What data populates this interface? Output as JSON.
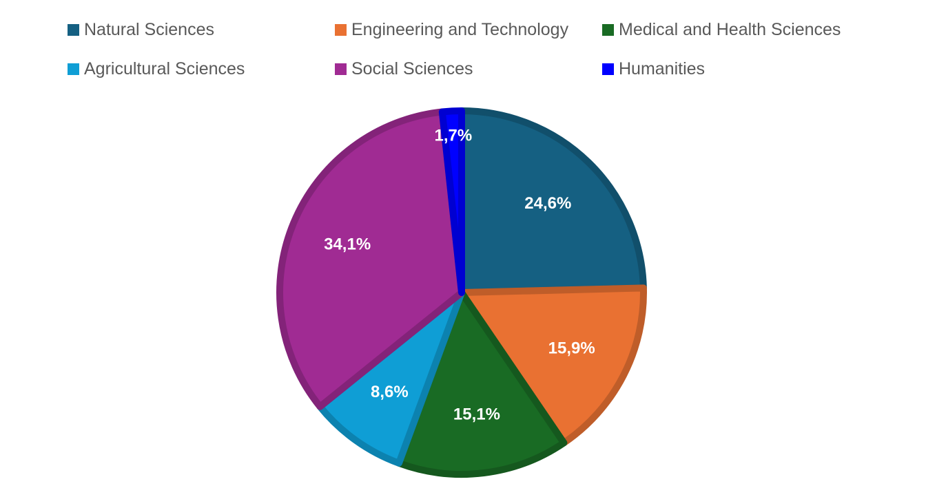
{
  "chart_data": {
    "type": "pie",
    "title": "",
    "legend_position": "top",
    "slices": [
      {
        "name": "Natural Sciences",
        "value": 24.6,
        "label": "24,6%",
        "color": "#156082"
      },
      {
        "name": "Engineering and Technology",
        "value": 15.9,
        "label": "15,9%",
        "color": "#E97132"
      },
      {
        "name": "Medical and Health Sciences",
        "value": 15.1,
        "label": "15,1%",
        "color": "#196B24"
      },
      {
        "name": "Agricultural Sciences",
        "value": 8.6,
        "label": "8,6%",
        "color": "#0F9ED5"
      },
      {
        "name": "Social Sciences",
        "value": 34.1,
        "label": "34,1%",
        "color": "#A02B93"
      },
      {
        "name": "Humanities",
        "value": 1.7,
        "label": "1,7%",
        "color": "#0000FF"
      }
    ]
  }
}
